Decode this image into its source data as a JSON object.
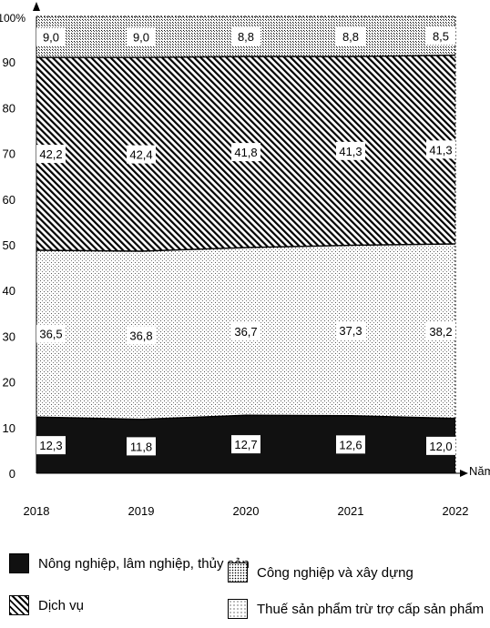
{
  "chart_data": {
    "type": "area",
    "stacked": true,
    "percent": true,
    "x": [
      "2018",
      "2019",
      "2020",
      "2021",
      "2022"
    ],
    "xlabel": "Năm",
    "ylabel": "",
    "y_top_label": "100%",
    "yticks": [
      "0",
      "10",
      "20",
      "30",
      "40",
      "50",
      "60",
      "70",
      "80",
      "90"
    ],
    "ylim": [
      0,
      100
    ],
    "series": [
      {
        "name": "Nông nghiệp, lâm nghiệp, thủy sản",
        "values": [
          12.3,
          11.8,
          12.7,
          12.6,
          12.0
        ],
        "labels": [
          "12,3",
          "11,8",
          "12,7",
          "12,6",
          "12,0"
        ],
        "pattern": "solid-black"
      },
      {
        "name": "Thuế sản phẩm trừ trợ cấp sản phẩm",
        "values": [
          36.5,
          36.8,
          36.7,
          37.3,
          38.2
        ],
        "labels": [
          "36,5",
          "36,8",
          "36,7",
          "37,3",
          "38,2"
        ],
        "pattern": "dots"
      },
      {
        "name": "Dịch vụ",
        "values": [
          42.2,
          42.4,
          41.8,
          41.3,
          41.3
        ],
        "labels": [
          "42,2",
          "42,4",
          "41,8",
          "41,3",
          "41,3"
        ],
        "pattern": "diagonal-hatch"
      },
      {
        "name": "Công nghiệp và xây dựng",
        "values": [
          9.0,
          9.0,
          8.8,
          8.8,
          8.5
        ],
        "labels": [
          "9,0",
          "9,0",
          "8,8",
          "8,8",
          "8,5"
        ],
        "pattern": "dense-dots"
      }
    ],
    "legend": [
      {
        "name": "Nông nghiệp, lâm nghiệp, thủy sản",
        "pattern": "solid-black"
      },
      {
        "name": "Công nghiệp và xây dựng",
        "pattern": "dense-dots"
      },
      {
        "name": "Dịch vụ",
        "pattern": "diagonal-hatch"
      },
      {
        "name": "Thuế sản phẩm trừ trợ cấp sản phẩm",
        "pattern": "dots"
      }
    ],
    "legend_position": "bottom",
    "grid": false,
    "colors": {
      "axis": "#000000",
      "fill_dark": "#111111",
      "background": "#ffffff"
    }
  }
}
